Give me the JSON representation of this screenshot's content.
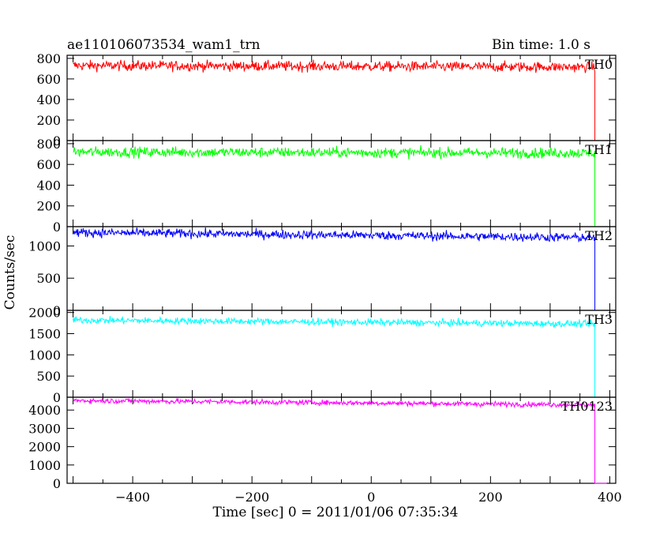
{
  "header": {
    "title": "ae110106073534_wam1_trn",
    "bin_time": "Bin time: 1.0 s"
  },
  "chart_data": {
    "type": "line",
    "xlabel": "Time [sec] 0 = 2011/01/06 07:35:34",
    "ylabel": "Counts/sec",
    "xlim": [
      -510,
      410
    ],
    "x_ticks": [
      -400,
      -200,
      0,
      200,
      400
    ],
    "x_data_range": [
      -500,
      375
    ],
    "drop_to_zero_after": 375,
    "x_end": 395,
    "panels": [
      {
        "name": "TH0",
        "color": "#ff0000",
        "ylim": [
          0,
          830
        ],
        "y_ticks": [
          0,
          200,
          400,
          600,
          800
        ],
        "start": 730,
        "end": 715,
        "noise": 25
      },
      {
        "name": "TH1",
        "color": "#00ff00",
        "ylim": [
          0,
          830
        ],
        "y_ticks": [
          0,
          200,
          400,
          600,
          800
        ],
        "start": 720,
        "end": 710,
        "noise": 25
      },
      {
        "name": "TH2",
        "color": "#0000ff",
        "ylim": [
          0,
          1300
        ],
        "y_ticks": [
          0,
          500,
          1000
        ],
        "start": 1210,
        "end": 1130,
        "noise": 35
      },
      {
        "name": "TH3",
        "color": "#00ffff",
        "ylim": [
          0,
          2050
        ],
        "y_ticks": [
          0,
          500,
          1000,
          1500,
          2000
        ],
        "start": 1820,
        "end": 1730,
        "noise": 40
      },
      {
        "name": "TH0123",
        "color": "#ff00ff",
        "ylim": [
          0,
          4700
        ],
        "y_ticks": [
          0,
          1000,
          2000,
          3000,
          4000
        ],
        "start": 4520,
        "end": 4280,
        "noise": 70
      }
    ]
  }
}
